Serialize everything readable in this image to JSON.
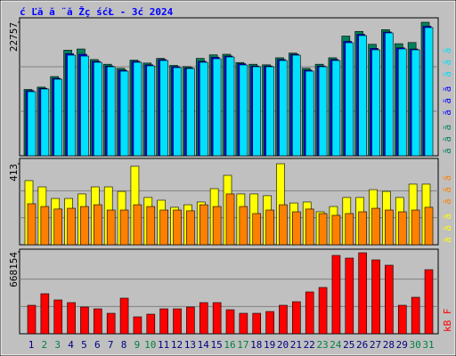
{
  "chart_data": [
    {
      "type": "bar",
      "title": "ć Ľă  ă ¨ă Žç śćŁ  - 3ć   2024",
      "ylim": [
        0,
        22757
      ],
      "yticks": [
        22757
      ],
      "series": [
        {
          "name": "ă ă ă",
          "color": "#00805c",
          "values": [
            11300,
            11700,
            13500,
            18000,
            18200,
            16400,
            15600,
            14900,
            16300,
            15800,
            16600,
            15400,
            15200,
            16600,
            17200,
            17300,
            15900,
            15600,
            15500,
            16700,
            17500,
            14900,
            15600,
            16700,
            20400,
            21200,
            19000,
            21500,
            19100,
            19300,
            22757
          ]
        },
        {
          "name": "ă ă ă",
          "color": "#0000ff",
          "values": [
            11100,
            11500,
            13200,
            17400,
            17300,
            16100,
            15300,
            14600,
            16100,
            15500,
            16400,
            15200,
            15000,
            16100,
            16800,
            17000,
            15700,
            15300,
            15300,
            16400,
            17300,
            14600,
            15300,
            16400,
            19500,
            20700,
            18300,
            21100,
            18400,
            18200,
            22100
          ]
        },
        {
          "name": "ă ă ă",
          "color": "#00e0ff",
          "values": [
            10923,
            11379,
            13047,
            17144,
            16992,
            15930,
            15171,
            14413,
            15930,
            15323,
            16233,
            15020,
            14868,
            15930,
            16537,
            16840,
            15475,
            15171,
            15171,
            16233,
            17144,
            14413,
            15171,
            16233,
            19268,
            20481,
            18054,
            20937,
            18206,
            18054,
            21847
          ]
        }
      ]
    },
    {
      "type": "bar",
      "ylim": [
        0,
        413
      ],
      "yticks": [
        413
      ],
      "series": [
        {
          "name": "ă ă ă",
          "color": "#ffff00",
          "values": [
            327,
            295,
            236,
            236,
            259,
            295,
            295,
            272,
            400,
            241,
            227,
            191,
            204,
            218,
            286,
            354,
            259,
            259,
            250,
            413,
            213,
            218,
            168,
            195,
            241,
            241,
            281,
            272,
            241,
            309,
            309
          ]
        },
        {
          "name": "ă ă ă",
          "color": "#ff8000",
          "values": [
            209,
            195,
            182,
            186,
            195,
            204,
            177,
            177,
            204,
            195,
            177,
            177,
            173,
            204,
            195,
            259,
            195,
            159,
            177,
            204,
            168,
            182,
            159,
            150,
            159,
            168,
            186,
            177,
            168,
            177,
            191
          ]
        }
      ]
    },
    {
      "type": "bar",
      "ylim": [
        0,
        668154
      ],
      "yticks": [
        668154
      ],
      "categories": [
        "1",
        "2",
        "3",
        "4",
        "5",
        "6",
        "7",
        "8",
        "9",
        "10",
        "11",
        "12",
        "13",
        "14",
        "15",
        "16",
        "17",
        "18",
        "19",
        "20",
        "21",
        "22",
        "23",
        "24",
        "25",
        "26",
        "27",
        "28",
        "29",
        "30",
        "31"
      ],
      "category_colors": [
        "#000080",
        "#008040",
        "#008040",
        "#000080",
        "#000080",
        "#000080",
        "#000080",
        "#000080",
        "#008040",
        "#008040",
        "#000080",
        "#000080",
        "#000080",
        "#000080",
        "#000080",
        "#008040",
        "#008040",
        "#000080",
        "#000080",
        "#000080",
        "#000080",
        "#000080",
        "#008040",
        "#008040",
        "#000080",
        "#000080",
        "#000080",
        "#000080",
        "#000080",
        "#008040",
        "#008040"
      ],
      "series": [
        {
          "name": "kB F",
          "color": "#ff0000",
          "values": [
            232407,
            326826,
            275990,
            254197,
            217890,
            203364,
            167049,
            290520,
            138000,
            159786,
            203364,
            203364,
            217890,
            254197,
            254197,
            196101,
            167049,
            167049,
            181575,
            232407,
            261468,
            341361,
            377676,
            639144,
            617355,
            660933,
            602829,
            559251,
            232407,
            297783,
            522936
          ]
        }
      ]
    }
  ]
}
